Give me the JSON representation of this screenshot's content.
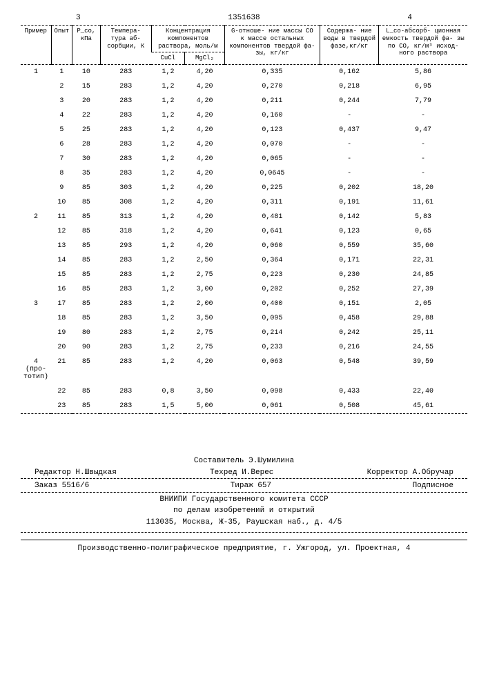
{
  "page_left": "3",
  "doc_number": "1351638",
  "page_right": "4",
  "table": {
    "headers": {
      "primer": "Пример",
      "opyt": "Опыт",
      "pco": "P_co, кПа",
      "temp": "Темпера-\nтура аб-\nсорбции,\nК",
      "conc": "Концентрация компонентов\nраствора, моль/м",
      "cucl": "CuCl",
      "mgcl2": "MgCl₂",
      "g": "G-отноше-\nние массы\nСО к массе\nостальных\nкомпонентов\nтвердой фа-\nзы, кг/кг",
      "water": "Содержа-\nние воды\nв твердой\nфазе,кг/кг",
      "lco": "L_co-абсорб-\nционная\nемкость\nтвердой фа-\nзы по СО,\nкг/м³ исход-\nного раствора"
    },
    "rows": [
      {
        "primer": "1",
        "opyt": "1",
        "pco": "10",
        "temp": "283",
        "cucl": "1,2",
        "mgcl2": "4,20",
        "g": "0,335",
        "water": "0,162",
        "lco": "5,86"
      },
      {
        "primer": "",
        "opyt": "2",
        "pco": "15",
        "temp": "283",
        "cucl": "1,2",
        "mgcl2": "4,20",
        "g": "0,270",
        "water": "0,218",
        "lco": "6,95"
      },
      {
        "primer": "",
        "opyt": "3",
        "pco": "20",
        "temp": "283",
        "cucl": "1,2",
        "mgcl2": "4,20",
        "g": "0,211",
        "water": "0,244",
        "lco": "7,79"
      },
      {
        "primer": "",
        "opyt": "4",
        "pco": "22",
        "temp": "283",
        "cucl": "1,2",
        "mgcl2": "4,20",
        "g": "0,160",
        "water": "-",
        "lco": "-"
      },
      {
        "primer": "",
        "opyt": "5",
        "pco": "25",
        "temp": "283",
        "cucl": "1,2",
        "mgcl2": "4,20",
        "g": "0,123",
        "water": "0,437",
        "lco": "9,47"
      },
      {
        "primer": "",
        "opyt": "6",
        "pco": "28",
        "temp": "283",
        "cucl": "1,2",
        "mgcl2": "4,20",
        "g": "0,070",
        "water": "-",
        "lco": "-"
      },
      {
        "primer": "",
        "opyt": "7",
        "pco": "30",
        "temp": "283",
        "cucl": "1,2",
        "mgcl2": "4,20",
        "g": "0,065",
        "water": "-",
        "lco": "-"
      },
      {
        "primer": "",
        "opyt": "8",
        "pco": "35",
        "temp": "283",
        "cucl": "1,2",
        "mgcl2": "4,20",
        "g": "0,0645",
        "water": "-",
        "lco": "-"
      },
      {
        "primer": "",
        "opyt": "9",
        "pco": "85",
        "temp": "303",
        "cucl": "1,2",
        "mgcl2": "4,20",
        "g": "0,225",
        "water": "0,202",
        "lco": "18,20"
      },
      {
        "primer": "",
        "opyt": "10",
        "pco": "85",
        "temp": "308",
        "cucl": "1,2",
        "mgcl2": "4,20",
        "g": "0,311",
        "water": "0,191",
        "lco": "11,61"
      },
      {
        "primer": "2",
        "opyt": "11",
        "pco": "85",
        "temp": "313",
        "cucl": "1,2",
        "mgcl2": "4,20",
        "g": "0,481",
        "water": "0,142",
        "lco": "5,83"
      },
      {
        "primer": "",
        "opyt": "12",
        "pco": "85",
        "temp": "318",
        "cucl": "1,2",
        "mgcl2": "4,20",
        "g": "0,641",
        "water": "0,123",
        "lco": "0,65"
      },
      {
        "primer": "",
        "opyt": "13",
        "pco": "85",
        "temp": "293",
        "cucl": "1,2",
        "mgcl2": "4,20",
        "g": "0,060",
        "water": "0,559",
        "lco": "35,60"
      },
      {
        "primer": "",
        "opyt": "14",
        "pco": "85",
        "temp": "283",
        "cucl": "1,2",
        "mgcl2": "2,50",
        "g": "0,364",
        "water": "0,171",
        "lco": "22,31"
      },
      {
        "primer": "",
        "opyt": "15",
        "pco": "85",
        "temp": "283",
        "cucl": "1,2",
        "mgcl2": "2,75",
        "g": "0,223",
        "water": "0,230",
        "lco": "24,85"
      },
      {
        "primer": "",
        "opyt": "16",
        "pco": "85",
        "temp": "283",
        "cucl": "1,2",
        "mgcl2": "3,00",
        "g": "0,202",
        "water": "0,252",
        "lco": "27,39"
      },
      {
        "primer": "3",
        "opyt": "17",
        "pco": "85",
        "temp": "283",
        "cucl": "1,2",
        "mgcl2": "2,00",
        "g": "0,400",
        "water": "0,151",
        "lco": "2,05"
      },
      {
        "primer": "",
        "opyt": "18",
        "pco": "85",
        "temp": "283",
        "cucl": "1,2",
        "mgcl2": "3,50",
        "g": "0,095",
        "water": "0,458",
        "lco": "29,88"
      },
      {
        "primer": "",
        "opyt": "19",
        "pco": "80",
        "temp": "283",
        "cucl": "1,2",
        "mgcl2": "2,75",
        "g": "0,214",
        "water": "0,242",
        "lco": "25,11"
      },
      {
        "primer": "",
        "opyt": "20",
        "pco": "90",
        "temp": "283",
        "cucl": "1,2",
        "mgcl2": "2,75",
        "g": "0,233",
        "water": "0,216",
        "lco": "24,55"
      },
      {
        "primer": "4\n(про-\nтотип)",
        "opyt": "21",
        "pco": "85",
        "temp": "283",
        "cucl": "1,2",
        "mgcl2": "4,20",
        "g": "0,063",
        "water": "0,548",
        "lco": "39,59"
      },
      {
        "primer": "",
        "opyt": "22",
        "pco": "85",
        "temp": "283",
        "cucl": "0,8",
        "mgcl2": "3,50",
        "g": "0,098",
        "water": "0,433",
        "lco": "22,40"
      },
      {
        "primer": "",
        "opyt": "23",
        "pco": "85",
        "temp": "283",
        "cucl": "1,5",
        "mgcl2": "5,00",
        "g": "0,061",
        "water": "0,508",
        "lco": "45,61"
      }
    ]
  },
  "footer": {
    "compiler": "Составитель Э.Шумилина",
    "editor": "Редактор Н.Швыдкая",
    "techred": "Техред И.Верес",
    "corrector": "Корректор А.Обручар",
    "order": "Заказ 5516/6",
    "tirazh": "Тираж 657",
    "podpisnoe": "Подписное",
    "org1": "ВНИИПИ Государственного комитета СССР",
    "org2": "по делам изобретений и открытий",
    "address": "113035, Москва, Ж-35, Раушская наб., д. 4/5",
    "press": "Производственно-полиграфическое предприятие, г. Ужгород, ул. Проектная, 4"
  }
}
